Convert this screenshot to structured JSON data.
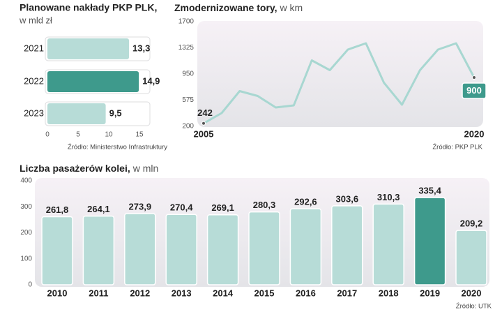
{
  "chart_data": [
    {
      "type": "hbar",
      "title": "Planowane nakłady PKP PLK,",
      "subtitle": "w mld zł",
      "categories": [
        "2021",
        "2022",
        "2023"
      ],
      "values": [
        13.3,
        14.9,
        9.5
      ],
      "value_labels": [
        "13,3",
        "14,9",
        "9,5"
      ],
      "colors": [
        "#b7dcd7",
        "#3e9a8c",
        "#b7dcd7"
      ],
      "xlim": [
        0,
        15
      ],
      "xticks": [
        0,
        5,
        10,
        15
      ],
      "source": "Źródło: Ministerstwo Infrastruktury"
    },
    {
      "type": "line",
      "title": "Zmodernizowane tory,",
      "subtitle": "w km",
      "x": [
        2005,
        2006,
        2007,
        2008,
        2009,
        2010,
        2011,
        2012,
        2013,
        2014,
        2015,
        2016,
        2017,
        2018,
        2019,
        2020
      ],
      "values": [
        242,
        390,
        705,
        635,
        470,
        500,
        1145,
        1005,
        1300,
        1390,
        825,
        510,
        1005,
        1300,
        1390,
        900
      ],
      "value_labels": [
        "242",
        null,
        null,
        null,
        null,
        null,
        null,
        null,
        null,
        null,
        null,
        null,
        null,
        null,
        null,
        "900"
      ],
      "color": "#a8d7d1",
      "xlim": [
        2005,
        2020
      ],
      "xticks": [
        2005,
        2020
      ],
      "ylim": [
        200,
        1700
      ],
      "yticks": [
        200,
        575,
        950,
        1325,
        1700
      ],
      "source": "Źródło: PKP PLK"
    },
    {
      "type": "bar",
      "title": "Liczba pasażerów kolei,",
      "subtitle": "w mln",
      "categories": [
        "2010",
        "2011",
        "2012",
        "2013",
        "2014",
        "2015",
        "2016",
        "2017",
        "2018",
        "2019",
        "2020"
      ],
      "values": [
        261.8,
        264.1,
        273.9,
        270.4,
        269.1,
        280.3,
        292.6,
        303.6,
        310.3,
        335.4,
        209.2
      ],
      "value_labels": [
        "261,8",
        "264,1",
        "273,9",
        "270,4",
        "269,1",
        "280,3",
        "292,6",
        "303,6",
        "310,3",
        "335,4",
        "209,2"
      ],
      "colors": [
        "#b7dcd7",
        "#b7dcd7",
        "#b7dcd7",
        "#b7dcd7",
        "#b7dcd7",
        "#b7dcd7",
        "#b7dcd7",
        "#b7dcd7",
        "#b7dcd7",
        "#3e9a8c",
        "#b7dcd7"
      ],
      "ylim": [
        0,
        400
      ],
      "yticks": [
        0,
        100,
        200,
        300,
        400
      ],
      "source": "Źródło: UTK"
    }
  ]
}
